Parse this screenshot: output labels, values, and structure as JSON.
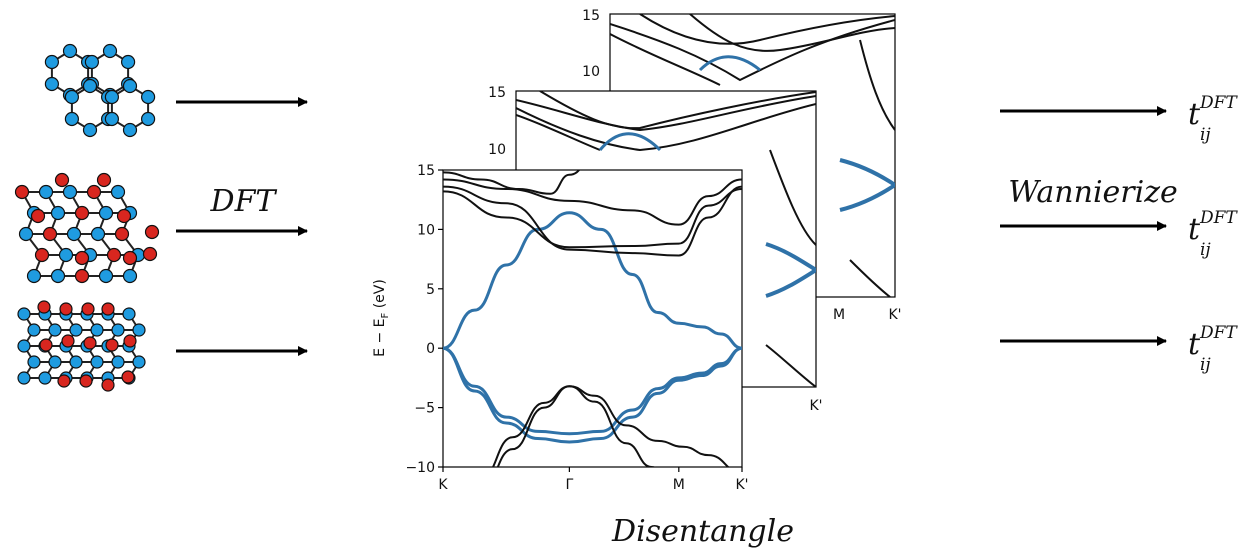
{
  "labels": {
    "dft": "DFT",
    "wannierize": "Wannierize",
    "disentangle": "Disentangle",
    "hopping_base": "t",
    "hopping_sub": "ij",
    "hopping_sup": "DFT"
  },
  "colors": {
    "atom_blue": "#1f9be0",
    "atom_red": "#d8261f",
    "wannier_band": "#2f72a8",
    "dft_band": "#111111"
  },
  "chart_data": {
    "type": "line",
    "title": "",
    "ylabel": "E − E_F (eV)",
    "ylabel_base": "E − E",
    "ylabel_sub": "F",
    "ylabel_unit": " (eV)",
    "xlabel": "",
    "ylim": [
      -10,
      15
    ],
    "yticks": [
      -10,
      -5,
      0,
      5,
      10,
      15
    ],
    "k_labels": [
      "K",
      "Γ",
      "M",
      "K'"
    ],
    "k_positions": [
      0,
      1,
      1.866,
      2.366
    ],
    "series": [
      {
        "role": "wannier",
        "x": [
          0,
          0.25,
          0.5,
          0.75,
          1.0,
          1.25,
          1.5,
          1.7,
          1.866,
          2.05,
          2.2,
          2.366
        ],
        "y": [
          0,
          3.2,
          7.0,
          10.0,
          11.4,
          10.0,
          6.2,
          3.0,
          2.1,
          1.8,
          1.2,
          0
        ]
      },
      {
        "role": "wannier",
        "x": [
          0,
          0.25,
          0.5,
          0.75,
          1.0,
          1.25,
          1.5,
          1.7,
          1.866,
          2.05,
          2.2,
          2.366
        ],
        "y": [
          0,
          -3.2,
          -5.8,
          -7.0,
          -7.2,
          -7.0,
          -5.2,
          -3.4,
          -2.5,
          -2.1,
          -1.3,
          0
        ]
      },
      {
        "role": "wannier",
        "x": [
          0,
          0.25,
          0.5,
          0.75,
          1.0,
          1.25,
          1.5,
          1.7,
          1.866,
          2.05,
          2.2,
          2.366
        ],
        "y": [
          0,
          -3.6,
          -6.3,
          -7.6,
          -7.9,
          -7.6,
          -5.8,
          -3.8,
          -2.7,
          -2.3,
          -1.5,
          0
        ]
      },
      {
        "role": "dft",
        "x": [
          0,
          0.5,
          1.0,
          1.5,
          1.866,
          2.1,
          2.366
        ],
        "y": [
          14.2,
          13.4,
          12.4,
          11.6,
          10.4,
          12.8,
          14.2
        ]
      },
      {
        "role": "dft",
        "x": [
          0,
          0.5,
          1.0,
          1.5,
          1.866,
          2.1,
          2.366
        ],
        "y": [
          13.6,
          12.2,
          8.3,
          8.0,
          7.8,
          11.0,
          13.6
        ]
      },
      {
        "role": "dft",
        "x": [
          0,
          0.5,
          1.0,
          1.5,
          1.866,
          2.1,
          2.366
        ],
        "y": [
          13.2,
          11.0,
          8.5,
          8.6,
          8.8,
          12.0,
          13.4
        ]
      },
      {
        "role": "dft",
        "x": [
          0,
          0.3,
          0.6,
          0.85,
          1.0,
          1.2,
          1.4,
          1.6,
          1.8
        ],
        "y": [
          14.8,
          14.2,
          13.4,
          13.0,
          14.6,
          16.0,
          17.0,
          17.0,
          17.0
        ]
      },
      {
        "role": "dft",
        "x": [
          0.3,
          0.55,
          0.8,
          1.0,
          1.2,
          1.45,
          1.65,
          1.8
        ],
        "y": [
          -12.0,
          -8.5,
          -5.0,
          -3.2,
          -4.5,
          -8.0,
          -10.0,
          -11.0
        ]
      },
      {
        "role": "dft",
        "x": [
          0.3,
          0.55,
          0.8,
          1.0,
          1.2,
          1.45,
          1.7,
          1.9,
          2.1,
          2.366
        ],
        "y": [
          -11.0,
          -7.5,
          -4.6,
          -3.2,
          -4.0,
          -6.5,
          -7.8,
          -8.3,
          -9.0,
          -10.5
        ]
      }
    ]
  }
}
